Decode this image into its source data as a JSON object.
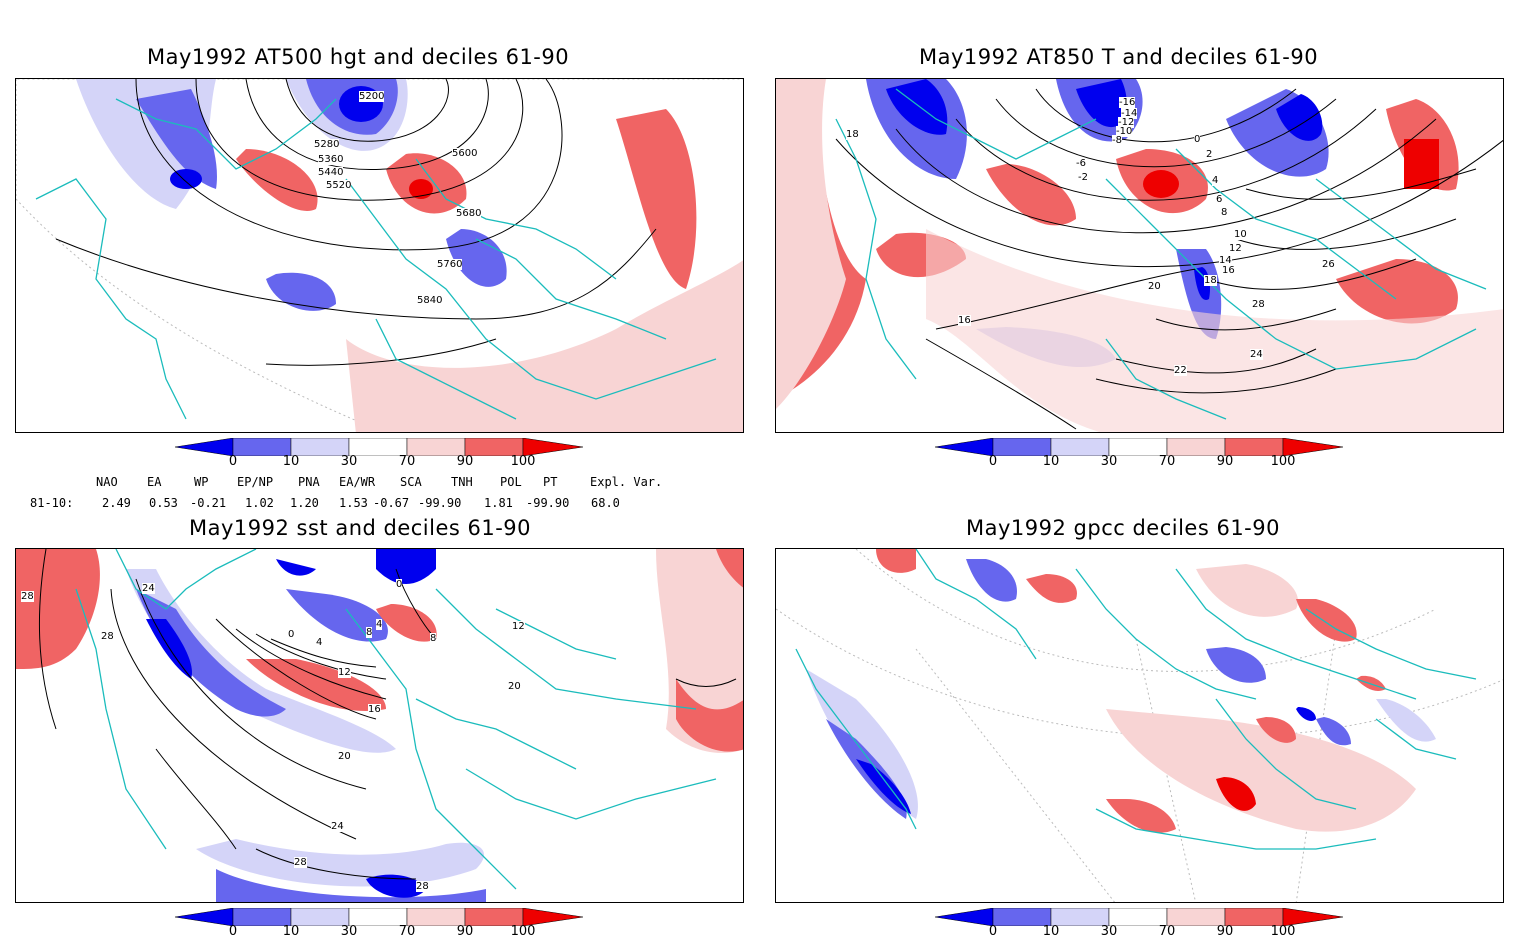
{
  "colors": {
    "dark_blue": "#0000ee",
    "mid_blue": "#6666ee",
    "light_blue": "#d4d4f8",
    "light_red": "#f8d4d4",
    "mid_red": "#f06464",
    "dark_red": "#ee0000",
    "coast": "#1bbcbc",
    "contour": "#000000"
  },
  "colorbar": {
    "labels": [
      "0",
      "10",
      "30",
      "70",
      "90",
      "100"
    ]
  },
  "panels": [
    {
      "title": "May1992 AT500 hgt and deciles 61-90",
      "contour_labels": [
        "5200",
        "5280",
        "5360",
        "5440",
        "5520",
        "5600",
        "5680",
        "5760",
        "5840"
      ]
    },
    {
      "title": "May1992 AT850 T and deciles 61-90",
      "contour_labels": [
        "-16",
        "-14",
        "-12",
        "-10",
        "-8",
        "-6",
        "-2",
        "0",
        "2",
        "4",
        "6",
        "8",
        "10",
        "12",
        "14",
        "16",
        "18",
        "20",
        "22",
        "24",
        "26",
        "28",
        "16",
        "18"
      ]
    },
    {
      "title": "May1992 sst and deciles 61-90",
      "contour_labels": [
        "28",
        "28",
        "24",
        "20",
        "16",
        "12",
        "8",
        "4",
        "0",
        "0",
        "4",
        "8",
        "12",
        "20",
        "24",
        "28",
        "28"
      ]
    },
    {
      "title": "May1992 gpcc deciles 61-90",
      "contour_labels": []
    }
  ],
  "indices": {
    "headers": [
      "NAO",
      "EA",
      "WP",
      "EP/NP",
      "PNA",
      "EA/WR",
      "SCA",
      "TNH",
      "POL",
      "PT",
      "Expl. Var."
    ],
    "row_label": "81-10:",
    "values": [
      "2.49",
      "0.53",
      "-0.21",
      "1.02",
      "1.20",
      "1.53",
      "-0.67",
      "-99.90",
      "1.81",
      "-99.90",
      "68.0"
    ]
  }
}
